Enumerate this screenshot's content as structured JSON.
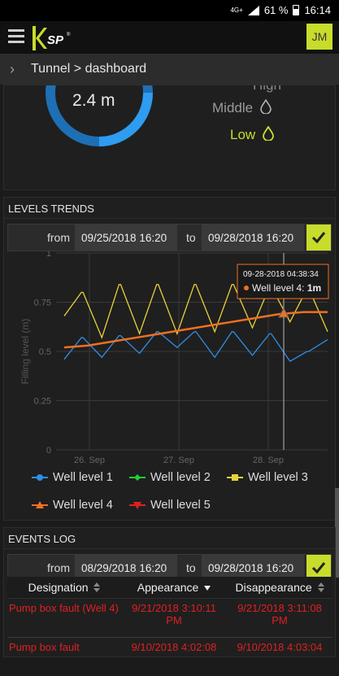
{
  "status_bar": {
    "network": "4G+",
    "battery": "61 %",
    "time": "16:14"
  },
  "topbar": {
    "logo_text": "KSP",
    "user_initials": "JM"
  },
  "breadcrumb": "Tunnel > dashboard",
  "gauge": {
    "value": "2.4 m",
    "levels": {
      "high": "High",
      "middle": "Middle",
      "low": "Low"
    }
  },
  "trends": {
    "title": "LEVELS TRENDS",
    "from_label": "from",
    "from_value": "09/25/2018 16:20",
    "to_label": "to",
    "to_value": "09/28/2018 16:20"
  },
  "tooltip": {
    "timestamp": "09-28-2018 04:38:34",
    "series": "Well level 4:",
    "value": "1m"
  },
  "chart_data": {
    "type": "line",
    "ylabel": "Filling level (m)",
    "ylim": [
      0,
      1
    ],
    "yticks": [
      "0",
      "0.25",
      "0.5",
      "0.75",
      "1"
    ],
    "xticks": [
      "26. Sep",
      "27. Sep",
      "28. Sep"
    ],
    "series": [
      {
        "name": "Well level 1",
        "color": "#2e8ee8",
        "values": [
          0.46,
          0.57,
          0.47,
          0.58,
          0.49,
          0.6,
          0.52,
          0.6,
          0.47,
          0.6,
          0.48,
          0.59,
          0.45,
          0.5,
          0.56
        ]
      },
      {
        "name": "Well level 2",
        "color": "#22cc33",
        "values": []
      },
      {
        "name": "Well level 3",
        "color": "#e8d23a",
        "values": [
          0.68,
          0.8,
          0.57,
          0.84,
          0.59,
          0.84,
          0.59,
          0.84,
          0.6,
          0.84,
          0.62,
          0.83,
          0.65,
          0.82,
          0.6
        ]
      },
      {
        "name": "Well level 4",
        "color": "#f07022",
        "values": [
          0.52,
          0.53,
          0.55,
          0.57,
          0.59,
          0.61,
          0.63,
          0.65,
          0.67,
          0.69,
          0.7,
          0.7
        ]
      },
      {
        "name": "Well level 5",
        "color": "#e02020",
        "values": []
      }
    ]
  },
  "events": {
    "title": "EVENTS LOG",
    "from_label": "from",
    "from_value": "08/29/2018 16:20",
    "to_label": "to",
    "to_value": "09/28/2018 16:20",
    "columns": [
      "Designation",
      "Appearance",
      "Disappearance"
    ],
    "rows": [
      {
        "designation": "Pump box fault (Well 4)",
        "appearance": "9/21/2018 3:10:11 PM",
        "disappearance": "9/21/2018 3:11:08 PM"
      },
      {
        "designation": "Pump box fault",
        "appearance": "9/10/2018 4:02:08",
        "disappearance": "9/10/2018 4:03:04"
      }
    ]
  }
}
